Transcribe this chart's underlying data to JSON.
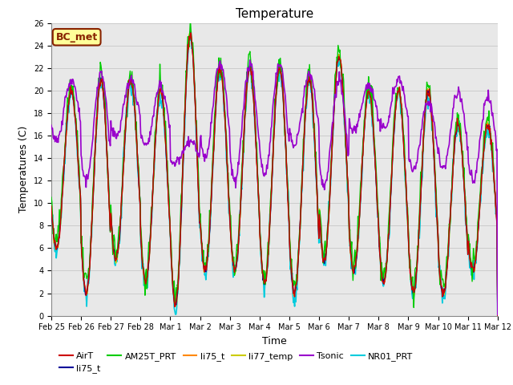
{
  "title": "Temperature",
  "ylabel": "Temperatures (C)",
  "xlabel": "Time",
  "ylim": [
    0,
    26
  ],
  "series": {
    "AirT": {
      "color": "#cc0000",
      "lw": 1.0
    },
    "li75_t_1": {
      "color": "#000099",
      "lw": 1.0,
      "label": "li75_t"
    },
    "AM25T_PRT": {
      "color": "#00cc00",
      "lw": 1.0
    },
    "li75_t_2": {
      "color": "#ff8800",
      "lw": 1.0,
      "label": "li75_t"
    },
    "li77_temp": {
      "color": "#cccc00",
      "lw": 1.0
    },
    "Tsonic": {
      "color": "#9900cc",
      "lw": 1.2
    },
    "NR01_PRT": {
      "color": "#00ccdd",
      "lw": 1.2
    }
  },
  "annotation": {
    "text": "BC_met",
    "facecolor": "#ffff99",
    "edgecolor": "#882200",
    "fontsize": 9,
    "fontcolor": "#882200"
  },
  "xtick_labels": [
    "Feb 25",
    "Feb 26",
    "Feb 27",
    "Feb 28",
    "Mar 1",
    "Mar 2",
    "Mar 3",
    "Mar 4",
    "Mar 5",
    "Mar 6",
    "Mar 7",
    "Mar 8",
    "Mar 9",
    "Mar 10",
    "Mar 11",
    "Mar 12"
  ],
  "bg_color": "#e8e8e8",
  "plot_bg": "#ffffff",
  "tick_fontsize": 7,
  "legend_fontsize": 8,
  "title_fontsize": 11,
  "daily_peaks": [
    20,
    21,
    21,
    20,
    25,
    22,
    22,
    22,
    21,
    23,
    20,
    20,
    20,
    17,
    17
  ],
  "daily_mins": [
    6,
    2,
    5,
    3,
    1,
    4,
    4,
    3,
    2,
    5,
    4,
    3,
    2,
    2,
    4
  ],
  "tsonic_peaks": [
    21,
    21.5,
    21,
    20.5,
    15.5,
    22.5,
    22.5,
    22.5,
    21.5,
    21,
    20.5,
    21,
    19,
    20,
    19.5
  ],
  "tsonic_mins": [
    15.5,
    12,
    16,
    15,
    13.5,
    14,
    12,
    12.5,
    15,
    11.5,
    16.5,
    16.5,
    13,
    13,
    12
  ]
}
